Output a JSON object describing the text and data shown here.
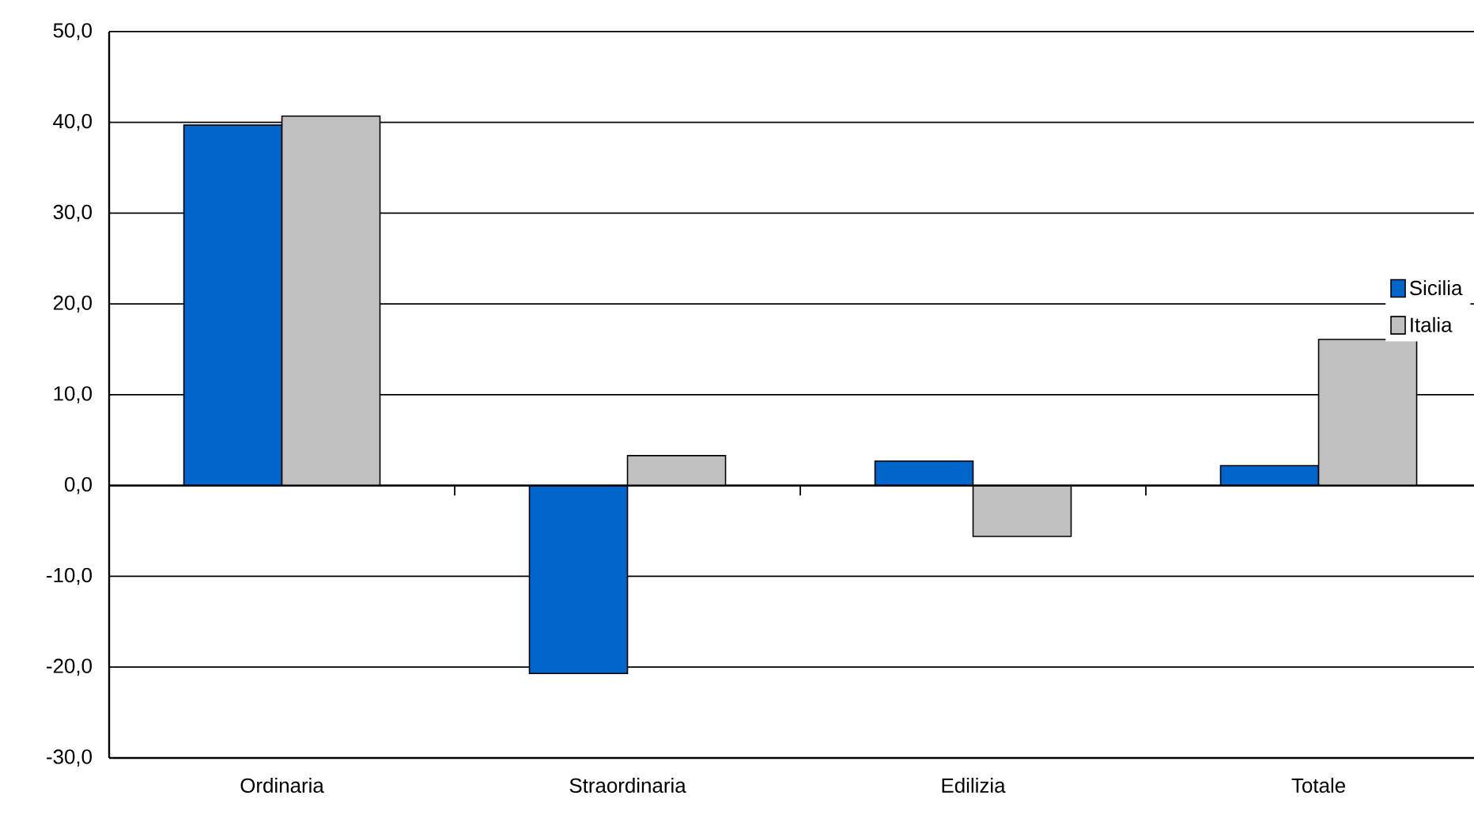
{
  "chart_data": {
    "type": "bar",
    "categories": [
      "Ordinaria",
      "Straordinaria",
      "Edilizia",
      "Totale"
    ],
    "series": [
      {
        "name": "Sicilia",
        "color": "#0066cc",
        "values": [
          39.7,
          -20.7,
          2.7,
          2.2
        ]
      },
      {
        "name": "Italia",
        "color": "#c0c0c0",
        "values": [
          40.7,
          3.3,
          -5.6,
          16.1
        ]
      }
    ],
    "ylim": [
      -30,
      50
    ],
    "yticks": [
      {
        "value": -30,
        "label": "-30,0"
      },
      {
        "value": -20,
        "label": "-20,0"
      },
      {
        "value": -10,
        "label": "-10,0"
      },
      {
        "value": 0,
        "label": "0,0"
      },
      {
        "value": 10,
        "label": "10,0"
      },
      {
        "value": 20,
        "label": "20,0"
      },
      {
        "value": 30,
        "label": "30,0"
      },
      {
        "value": 40,
        "label": "40,0"
      },
      {
        "value": 50,
        "label": "50,0"
      }
    ],
    "grid": "y",
    "legend": "right"
  }
}
